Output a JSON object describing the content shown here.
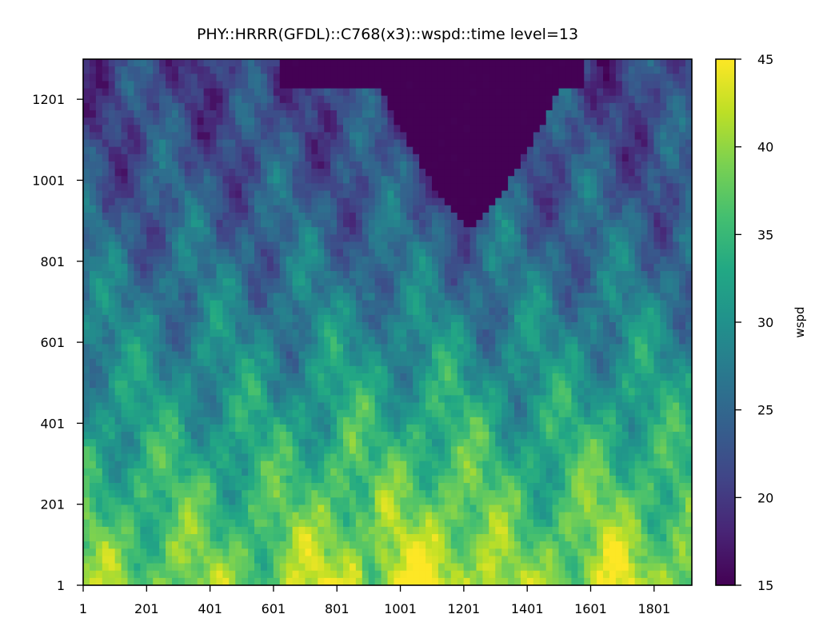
{
  "chart_data": {
    "type": "heatmap",
    "title": "PHY::HRRR(GFDL)::C768(x3)::wspd::time level=13",
    "x_ticks": [
      "1",
      "201",
      "401",
      "601",
      "801",
      "1001",
      "1201",
      "1401",
      "1601",
      "1801"
    ],
    "y_ticks": [
      "1",
      "201",
      "401",
      "601",
      "801",
      "1001",
      "1201"
    ],
    "xlim": [
      1,
      1920
    ],
    "ylim": [
      1,
      1300
    ],
    "grid": false,
    "colorbar": {
      "label": "wspd",
      "ticks": [
        "15",
        "20",
        "25",
        "30",
        "35",
        "40",
        "45"
      ],
      "range": [
        15,
        45
      ],
      "colormap": "viridis"
    },
    "field_description_rows_bottom_to_top": [
      {
        "y": 1,
        "typical_wspd": 38
      },
      {
        "y": 201,
        "typical_wspd": 37
      },
      {
        "y": 401,
        "typical_wspd": 34
      },
      {
        "y": 601,
        "typical_wspd": 31
      },
      {
        "y": 801,
        "typical_wspd": 27
      },
      {
        "y": 1001,
        "typical_wspd": 23
      },
      {
        "y": 1201,
        "typical_wspd": 20
      }
    ]
  }
}
